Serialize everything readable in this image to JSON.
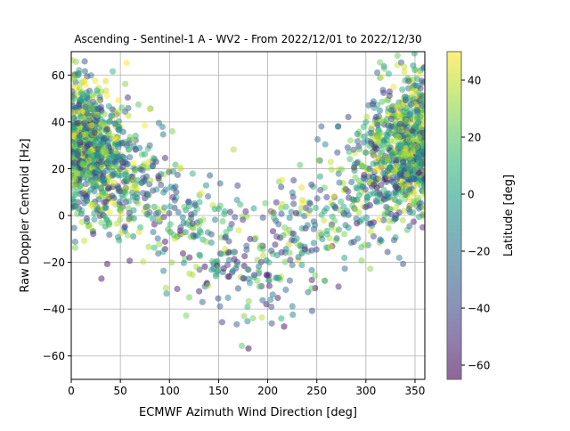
{
  "chart_data": {
    "type": "scatter",
    "title": "Ascending - Sentinel-1 A - WV2 - From 2022/12/01 to 2022/12/30",
    "xlabel": "ECMWF Azimuth Wind Direction [deg]",
    "ylabel": "Raw Doppler Centroid [Hz]",
    "xlim": [
      0,
      360
    ],
    "ylim": [
      -70,
      70
    ],
    "xticks": [
      0,
      50,
      100,
      150,
      200,
      250,
      300,
      350
    ],
    "yticks": [
      -60,
      -40,
      -20,
      0,
      20,
      40,
      60
    ],
    "grid": true,
    "colormap": "viridis",
    "colorbar": {
      "label": "Latitude [deg]",
      "range": [
        -65,
        50
      ],
      "ticks": [
        -60,
        -40,
        -20,
        0,
        20,
        40
      ]
    },
    "trend": "Doppler follows approx 25*cos(direction) + 5 Hz with +/-15 Hz spread; densest near 0-60 and 300-360 deg",
    "point_count": 2200
  }
}
